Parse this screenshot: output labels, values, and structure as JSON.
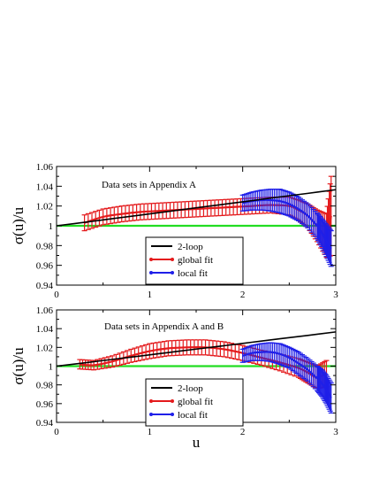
{
  "chart_data": [
    {
      "type": "line",
      "title": "Data sets in Appendix A",
      "xlabel": "",
      "ylabel": "σ(u)/u",
      "xlim": [
        0,
        3
      ],
      "ylim": [
        0.94,
        1.06
      ],
      "x_ticks": [
        "0",
        "1",
        "2",
        "3"
      ],
      "y_ticks": [
        "0.94",
        "0.96",
        "0.98",
        "1",
        "1.02",
        "1.04",
        "1.06"
      ],
      "legend_position": "bottom-center",
      "grid": false,
      "series": [
        {
          "name": "2-loop",
          "color": "#000000",
          "x": [
            0,
            0.3,
            0.6,
            0.9,
            1.2,
            1.5,
            1.8,
            2.1,
            2.4,
            2.7,
            3.0
          ],
          "values": [
            1.0,
            1.0035,
            1.0072,
            1.0108,
            1.0145,
            1.0182,
            1.0218,
            1.0255,
            1.0292,
            1.0328,
            1.0365
          ]
        },
        {
          "name": "global fit",
          "color": "#e41a1c",
          "x": [
            0.3,
            0.5,
            0.7,
            0.9,
            1.1,
            1.3,
            1.5,
            1.7,
            1.9,
            2.1,
            2.3,
            2.5,
            2.6,
            2.7,
            2.8,
            2.9,
            2.95
          ],
          "values": [
            1.003,
            1.009,
            1.012,
            1.014,
            1.015,
            1.016,
            1.017,
            1.018,
            1.019,
            1.02,
            1.021,
            1.02,
            1.016,
            1.01,
            1.0,
            0.99,
            1.01
          ],
          "errors": [
            0.008,
            0.008,
            0.008,
            0.008,
            0.008,
            0.008,
            0.008,
            0.008,
            0.008,
            0.008,
            0.008,
            0.009,
            0.01,
            0.012,
            0.016,
            0.022,
            0.04
          ]
        },
        {
          "name": "local fit",
          "color": "#1f1fe8",
          "x": [
            2.0,
            2.1,
            2.2,
            2.3,
            2.4,
            2.5,
            2.6,
            2.7,
            2.8,
            2.85,
            2.9,
            2.95
          ],
          "values": [
            1.023,
            1.025,
            1.026,
            1.026,
            1.025,
            1.022,
            1.017,
            1.01,
            1.0,
            0.993,
            0.985,
            0.977
          ],
          "errors": [
            0.008,
            0.009,
            0.01,
            0.011,
            0.012,
            0.012,
            0.012,
            0.012,
            0.013,
            0.014,
            0.016,
            0.018
          ]
        },
        {
          "name": "",
          "color": "#22dd22",
          "x": [
            0,
            3
          ],
          "values": [
            1.0,
            1.0
          ]
        }
      ]
    },
    {
      "type": "line",
      "title": "Data sets in Appendix A and B",
      "xlabel": "u",
      "ylabel": "σ(u)/u",
      "xlim": [
        0,
        3
      ],
      "ylim": [
        0.94,
        1.06
      ],
      "x_ticks": [
        "0",
        "1",
        "2",
        "3"
      ],
      "y_ticks": [
        "0.94",
        "0.96",
        "0.98",
        "1",
        "1.02",
        "1.04",
        "1.06"
      ],
      "legend_position": "bottom-center",
      "grid": false,
      "series": [
        {
          "name": "2-loop",
          "color": "#000000",
          "x": [
            0,
            0.3,
            0.6,
            0.9,
            1.2,
            1.5,
            1.8,
            2.1,
            2.4,
            2.7,
            3.0
          ],
          "values": [
            1.0,
            1.0035,
            1.0072,
            1.0108,
            1.0145,
            1.0182,
            1.0218,
            1.0255,
            1.0292,
            1.0328,
            1.0365
          ]
        },
        {
          "name": "global fit",
          "color": "#e41a1c",
          "x": [
            0.25,
            0.4,
            0.6,
            0.8,
            1.0,
            1.2,
            1.4,
            1.6,
            1.8,
            2.0,
            2.2,
            2.4,
            2.6,
            2.7,
            2.8,
            2.9
          ],
          "values": [
            1.002,
            1.001,
            1.005,
            1.011,
            1.016,
            1.019,
            1.02,
            1.02,
            1.018,
            1.014,
            1.009,
            1.004,
            0.998,
            0.993,
            0.988,
            0.992
          ],
          "errors": [
            0.005,
            0.005,
            0.006,
            0.007,
            0.008,
            0.008,
            0.008,
            0.008,
            0.008,
            0.008,
            0.008,
            0.009,
            0.01,
            0.011,
            0.012,
            0.014
          ]
        },
        {
          "name": "local fit",
          "color": "#1f1fe8",
          "x": [
            2.0,
            2.1,
            2.2,
            2.3,
            2.4,
            2.5,
            2.6,
            2.7,
            2.8,
            2.85,
            2.9,
            2.95
          ],
          "values": [
            1.011,
            1.014,
            1.015,
            1.015,
            1.013,
            1.009,
            1.003,
            0.996,
            0.987,
            0.982,
            0.975,
            0.966
          ],
          "errors": [
            0.007,
            0.008,
            0.009,
            0.01,
            0.011,
            0.011,
            0.012,
            0.012,
            0.013,
            0.014,
            0.015,
            0.016
          ]
        },
        {
          "name": "",
          "color": "#22dd22",
          "x": [
            0,
            3
          ],
          "values": [
            1.0,
            1.0
          ]
        }
      ]
    }
  ]
}
